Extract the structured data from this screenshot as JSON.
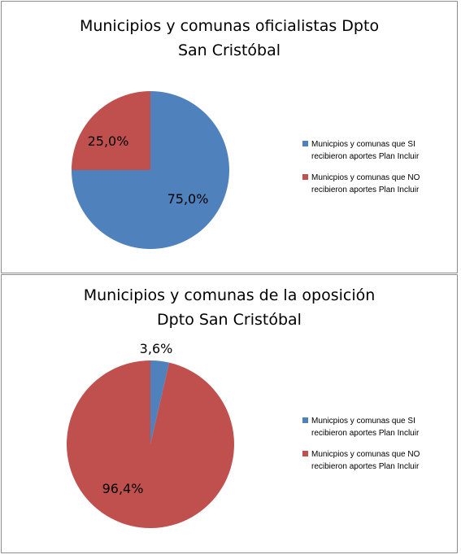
{
  "chart_data": [
    {
      "type": "pie",
      "title_lines": [
        "Municipios y comunas oficialistas Dpto",
        "San Cristóbal"
      ],
      "slices": [
        {
          "label": "Municpios y comunas que SI recibieron aportes Plan Incluir",
          "value": 75.0,
          "display": "75,0%",
          "color": "#4f81bd"
        },
        {
          "label": "Municpios y comunas que NO recibieron aportes Plan Incluir",
          "value": 25.0,
          "display": "25,0%",
          "color": "#c0504d"
        }
      ],
      "legend_lines": [
        [
          "Municpios y comunas que SI",
          "recibieron aportes Plan Incluir"
        ],
        [
          "Municpios y comunas que NO",
          "recibieron aportes Plan Incluir"
        ]
      ],
      "legend_position": "right"
    },
    {
      "type": "pie",
      "title_lines": [
        "Municipios y comunas de la oposición",
        "Dpto San Cristóbal"
      ],
      "slices": [
        {
          "label": "Municpios y comunas que SI recibieron aportes Plan Incluir",
          "value": 3.6,
          "display": "3,6%",
          "color": "#4f81bd"
        },
        {
          "label": "Municpios y comunas que NO recibieron aportes Plan Incluir",
          "value": 96.4,
          "display": "96,4%",
          "color": "#c0504d"
        }
      ],
      "legend_lines": [
        [
          "Municpios y comunas que SI",
          "recibieron aportes Plan Incluir"
        ],
        [
          "Municpios y comunas que NO",
          "recibieron aportes Plan Incluir"
        ]
      ],
      "legend_position": "right"
    }
  ]
}
